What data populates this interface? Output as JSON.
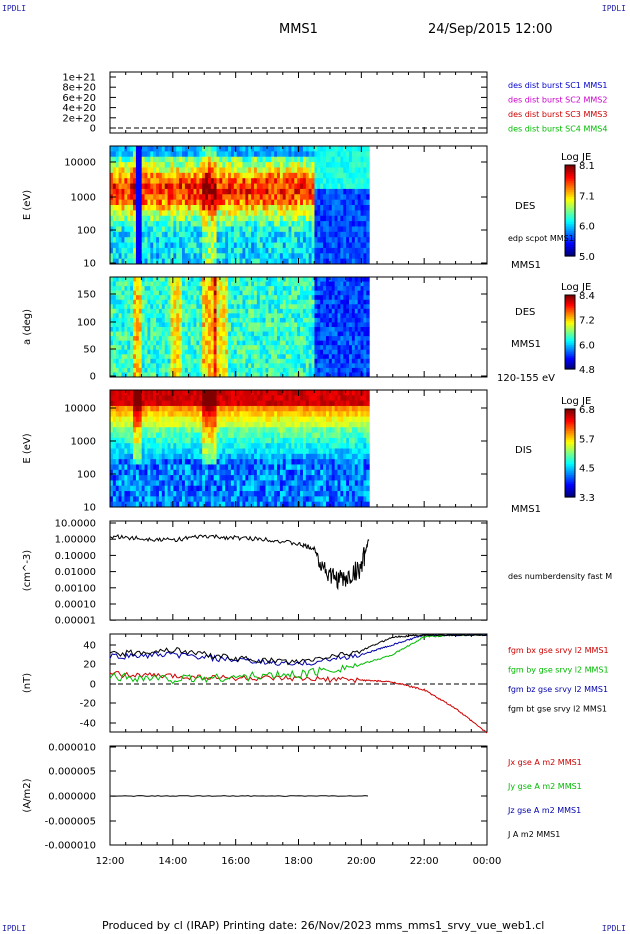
{
  "page": {
    "corner_tl": "IPDLI",
    "corner_tr": "IPDLI",
    "corner_bl": "IPDLI",
    "corner_br": "IPDLI",
    "mission": "MMS1",
    "datetime": "24/Sep/2015 12:00",
    "footer": "Produced by cl (IRAP)   Printing date: 26/Nov/2023   mms_mms1_srvy_vue_web1.cl"
  },
  "colors": {
    "mms1": "#0000cc",
    "mms2": "#cc00cc",
    "mms3": "#cc0000",
    "mms4": "#00bb00",
    "bx": "#cc0000",
    "by": "#00bb00",
    "bz": "#0000aa",
    "bt": "#000000"
  },
  "chart_data": [
    {
      "type": "line",
      "panel": "des-dist-burst",
      "ylim": [
        0,
        1e+21
      ],
      "yticks": [
        "1e+21",
        "8e+20",
        "6e+20",
        "4e+20",
        "2e+20",
        "0"
      ],
      "series": [
        {
          "name": "des dist burst SC1 MMS1",
          "values": []
        },
        {
          "name": "des dist burst SC2 MMS2",
          "values": []
        },
        {
          "name": "des dist burst SC3 MMS3",
          "values": []
        },
        {
          "name": "des dist burst SC4 MMS4",
          "values": []
        }
      ],
      "reference_line": 0
    },
    {
      "type": "heatmap",
      "panel": "des-energy",
      "ylabel": "E (eV)",
      "yscale": "log",
      "ylim": [
        10,
        30000
      ],
      "yticks": [
        "10000",
        "1000",
        "100",
        "10"
      ],
      "colorbar": {
        "title": "Log JE",
        "ticks": [
          "8.1",
          "7.1",
          "6.0",
          "5.0"
        ],
        "range": [
          5.0,
          8.1
        ]
      },
      "labels": [
        "DES",
        "edp scpot MMS1",
        "MMS1"
      ],
      "data_end_time": "20:15"
    },
    {
      "type": "heatmap",
      "panel": "des-pitch",
      "ylabel": "a (deg)",
      "ylim": [
        0,
        180
      ],
      "yticks": [
        "150",
        "100",
        "50",
        "0"
      ],
      "colorbar": {
        "title": "Log JE",
        "ticks": [
          "8.4",
          "7.2",
          "6.0",
          "4.8"
        ],
        "range": [
          4.8,
          8.4
        ]
      },
      "labels": [
        "DES",
        "MMS1",
        "120-155 eV"
      ],
      "data_end_time": "20:15"
    },
    {
      "type": "heatmap",
      "panel": "dis-energy",
      "ylabel": "E (eV)",
      "yscale": "log",
      "ylim": [
        10,
        30000
      ],
      "yticks": [
        "10000",
        "1000",
        "100",
        "10"
      ],
      "colorbar": {
        "title": "Log JE",
        "ticks": [
          "6.8",
          "5.7",
          "4.5",
          "3.3"
        ],
        "range": [
          3.3,
          6.8
        ]
      },
      "labels": [
        "DIS",
        "MMS1"
      ],
      "data_end_time": "20:15"
    },
    {
      "type": "line",
      "panel": "density",
      "ylabel": "(cm^-3)",
      "yscale": "log",
      "ylim": [
        1e-05,
        10
      ],
      "yticks": [
        "10.0000",
        "1.00000",
        "0.10000",
        "0.01000",
        "0.00100",
        "0.00010",
        "0.00001"
      ],
      "series": [
        {
          "name": "des numberdensity fast M",
          "x": [
            "12:00",
            "13:00",
            "14:00",
            "15:00",
            "16:00",
            "17:00",
            "18:00",
            "18:30",
            "19:00",
            "19:30",
            "20:00",
            "20:15"
          ],
          "values": [
            1.5,
            1.1,
            0.9,
            1.5,
            1.2,
            1.0,
            0.5,
            0.25,
            0.005,
            0.003,
            0.02,
            1.2
          ]
        }
      ]
    },
    {
      "type": "line",
      "panel": "fgm",
      "ylabel": "(nT)",
      "ylim": [
        -50,
        50
      ],
      "yticks": [
        "40",
        "20",
        "0",
        "-20",
        "-40"
      ],
      "x": [
        "12:00",
        "14:00",
        "16:00",
        "18:00",
        "20:00",
        "21:00",
        "22:00",
        "23:00",
        "00:00"
      ],
      "series": [
        {
          "name": "fgm bx gse srvy l2 MMS1",
          "values": [
            10,
            8,
            6,
            5,
            4,
            2,
            -6,
            -25,
            -50
          ]
        },
        {
          "name": "fgm by gse srvy l2 MMS1",
          "values": [
            8,
            5,
            7,
            10,
            20,
            30,
            48,
            50,
            50
          ]
        },
        {
          "name": "fgm bz gse srvy l2 MMS1",
          "values": [
            28,
            30,
            24,
            20,
            30,
            40,
            50,
            50,
            50
          ]
        },
        {
          "name": "fgm bt gse srvy l2 MMS1",
          "values": [
            30,
            35,
            26,
            22,
            34,
            48,
            50,
            50,
            50
          ]
        }
      ],
      "reference_line": 0
    },
    {
      "type": "line",
      "panel": "current",
      "ylabel": "(A/m2)",
      "ylim": [
        -1e-05,
        1e-05
      ],
      "yticks": [
        "0.000010",
        "0.000005",
        "0.000000",
        "-0.000005",
        "-0.000010"
      ],
      "series": [
        {
          "name": "Jx gse A m2 MMS1",
          "values": []
        },
        {
          "name": "Jy gse A m2 MMS1",
          "values": []
        },
        {
          "name": "Jz gse A m2 MMS1",
          "values": []
        },
        {
          "name": "J A m2 MMS1",
          "values": [
            0,
            0,
            0,
            0,
            0
          ]
        }
      ]
    }
  ],
  "xaxis": {
    "ticks": [
      "12:00",
      "14:00",
      "16:00",
      "18:00",
      "20:00",
      "22:00",
      "00:00"
    ]
  }
}
